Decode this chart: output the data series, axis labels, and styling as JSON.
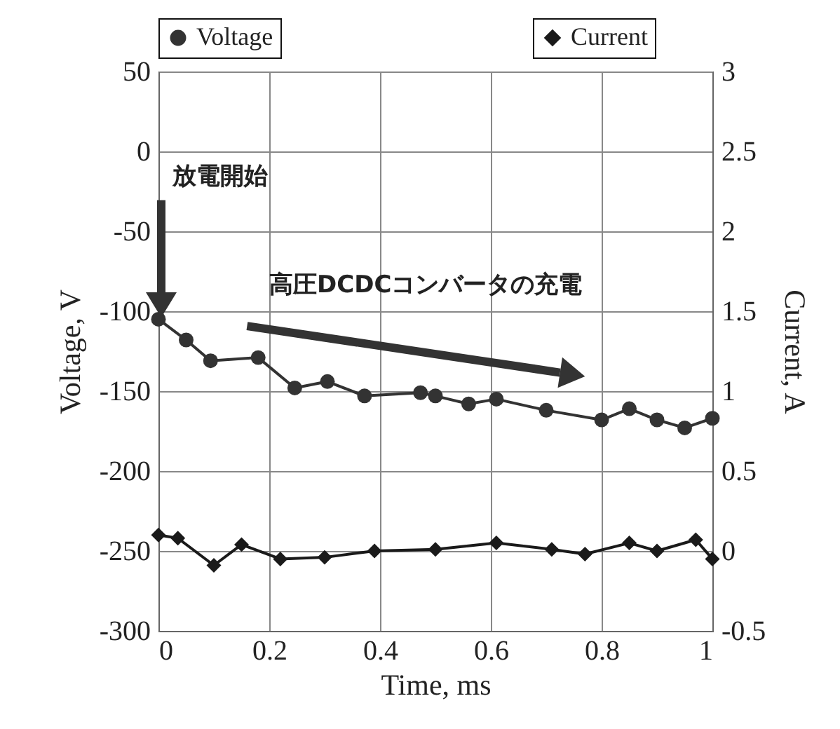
{
  "chart_data": {
    "type": "line",
    "xlabel": "Time, ms",
    "ylabel": "Voltage, V",
    "y2label": "Current, A",
    "xlim": [
      0,
      1
    ],
    "xticks": [
      0,
      0.2,
      0.4,
      0.6,
      0.8,
      1
    ],
    "ylim": [
      -300,
      50
    ],
    "yticks": [
      -300,
      -250,
      -200,
      -150,
      -100,
      -50,
      0,
      50
    ],
    "y2lim": [
      -0.5,
      3
    ],
    "y2ticks": [
      -0.5,
      0,
      0.5,
      1,
      1.5,
      2,
      2.5,
      3
    ],
    "grid": true,
    "legend": "top",
    "series": [
      {
        "name": "Voltage",
        "color": "#333333",
        "marker": "circle",
        "x": [
          0,
          0.05,
          0.094,
          0.18,
          0.246,
          0.305,
          0.372,
          0.473,
          0.5,
          0.56,
          0.61,
          0.7,
          0.8,
          0.85,
          0.9,
          0.95,
          1
        ],
        "values": [
          -105,
          -118,
          -131,
          -129,
          -148,
          -144,
          -153,
          -151,
          -153,
          -158,
          -155,
          -162,
          -168,
          -161,
          -168,
          -173,
          -167
        ]
      },
      {
        "name": "Current",
        "color": "#1a1a1a",
        "marker": "diamond",
        "axis": "y2",
        "x": [
          0,
          0.035,
          0.1,
          0.15,
          0.22,
          0.3,
          0.39,
          0.5,
          0.61,
          0.71,
          0.77,
          0.85,
          0.9,
          0.97,
          1
        ],
        "values": [
          0.1,
          0.08,
          -0.09,
          0.04,
          -0.05,
          -0.04,
          0,
          0.01,
          0.05,
          0.01,
          -0.02,
          0.05,
          0,
          0.07,
          -0.05
        ]
      }
    ],
    "annotations": [
      "放電開始",
      "高圧DCDCコンバータの充電"
    ]
  }
}
